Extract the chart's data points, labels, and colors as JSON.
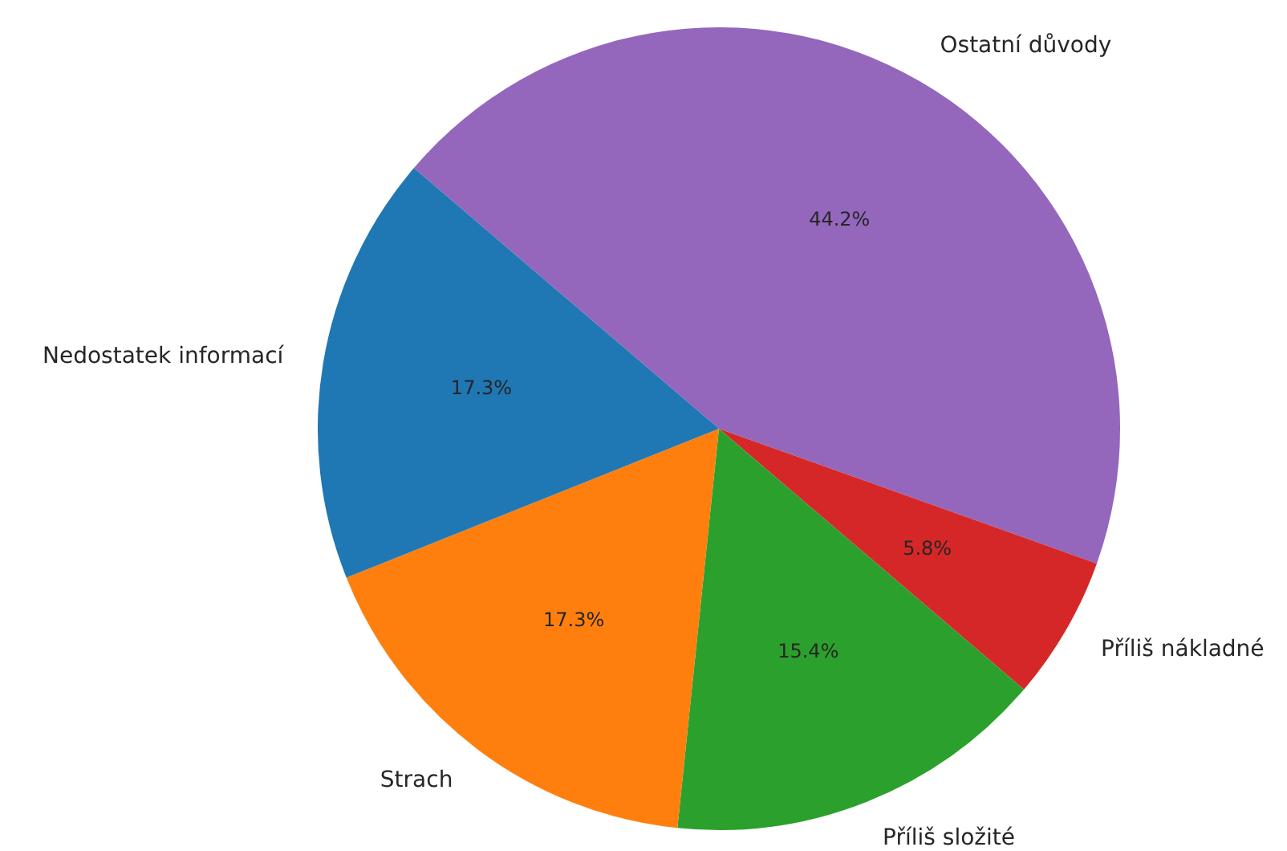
{
  "chart_data": {
    "type": "pie",
    "categories": [
      "Ostatní důvody",
      "Příliš nákladné",
      "Příliš složité",
      "Strach",
      "Nedostatek informací"
    ],
    "values": [
      44.2,
      5.8,
      15.4,
      17.3,
      17.3
    ],
    "colors": [
      "#9467bd",
      "#d62728",
      "#2ca02c",
      "#ff7f0e",
      "#1f77b4"
    ],
    "value_labels": [
      "44.2%",
      "5.8%",
      "15.4%",
      "17.3%",
      "17.3%"
    ],
    "legend": false
  }
}
